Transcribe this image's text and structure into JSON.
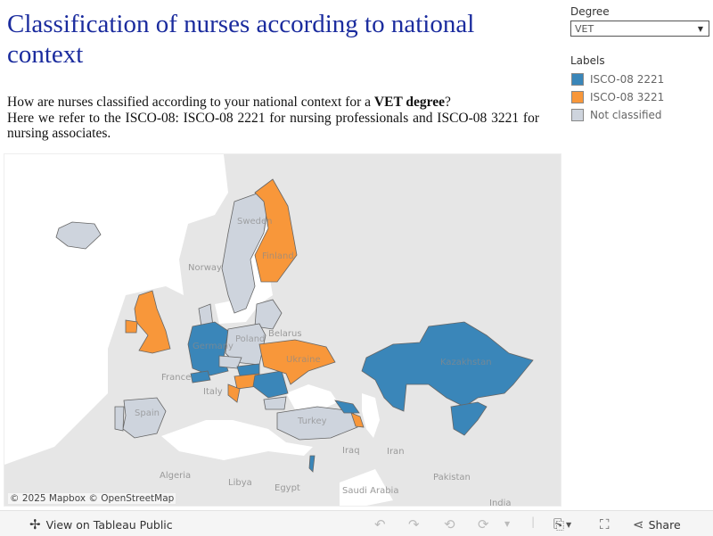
{
  "title": "Classification of nurses according to national context",
  "description": {
    "line1_pre": "How are nurses classified according to your national context for a ",
    "line1_bold": "VET degree",
    "line1_post": "?",
    "line2": "Here we refer to the ISCO-08: ISCO-08 2221 for nursing professionals and ISCO-08 3221 for nursing associates."
  },
  "filter": {
    "label": "Degree",
    "value": "VET"
  },
  "legend": {
    "title": "Labels",
    "items": [
      {
        "label": "ISCO-08 2221",
        "color": "#3a86b9"
      },
      {
        "label": "ISCO-08 3221",
        "color": "#f8973a"
      },
      {
        "label": "Not classified",
        "color": "#ced4dd"
      }
    ]
  },
  "map": {
    "labels": [
      "Sweden",
      "Norway",
      "Finland",
      "Belarus",
      "Poland",
      "Germany",
      "Ukraine",
      "France",
      "Italy",
      "Spain",
      "Turkey",
      "Kazakhstan",
      "Algeria",
      "Libya",
      "Egypt",
      "Iraq",
      "Iran",
      "Saudi Arabia",
      "Pakistan",
      "India"
    ],
    "attribution": "© 2025 Mapbox  © OpenStreetMap"
  },
  "toolbar": {
    "view_label": "View on Tableau Public",
    "share_label": "Share"
  }
}
